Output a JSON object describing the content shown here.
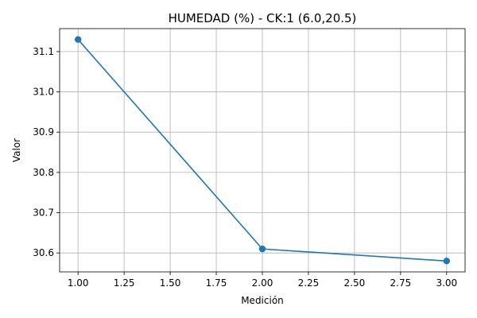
{
  "chart_data": {
    "type": "line",
    "title": "HUMEDAD (%) - CK:1 (6.0,20.5)",
    "xlabel": "Medición",
    "ylabel": "Valor",
    "x": [
      1.0,
      2.0,
      3.0
    ],
    "series": [
      {
        "values": [
          31.13,
          30.61,
          30.58
        ],
        "color": "#1f77b4",
        "marker": "circle"
      }
    ],
    "xlim": [
      0.9,
      3.1
    ],
    "ylim": [
      30.553,
      31.157
    ],
    "x_ticks": [
      "1.00",
      "1.25",
      "1.50",
      "1.75",
      "2.00",
      "2.25",
      "2.50",
      "2.75",
      "3.00"
    ],
    "y_ticks": [
      "30.6",
      "30.7",
      "30.8",
      "30.9",
      "31.0",
      "31.1"
    ],
    "grid": true
  }
}
